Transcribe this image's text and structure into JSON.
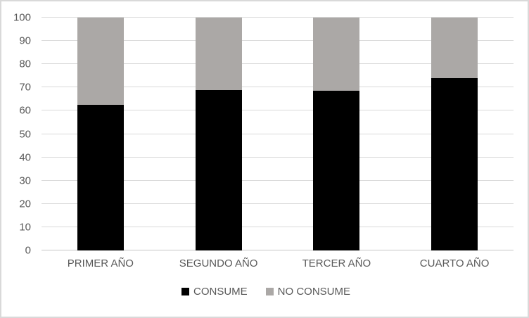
{
  "chart_data": {
    "type": "bar",
    "stacked": true,
    "title": "",
    "xlabel": "",
    "ylabel": "",
    "categories": [
      "PRIMER AÑO",
      "SEGUNDO AÑO",
      "TERCER AÑO",
      "CUARTO AÑO"
    ],
    "series": [
      {
        "name": "CONSUME",
        "color": "#000000",
        "values": [
          62.5,
          69,
          68.5,
          74
        ]
      },
      {
        "name": "NO CONSUME",
        "color": "#aba8a6",
        "values": [
          37.5,
          31,
          31.5,
          26
        ]
      }
    ],
    "ylim": [
      0,
      100
    ],
    "yticks": [
      0,
      10,
      20,
      30,
      40,
      50,
      60,
      70,
      80,
      90,
      100
    ],
    "grid": true,
    "legend_position": "bottom"
  },
  "colors": {
    "gridline": "#d9d9d9",
    "axis_line": "#c6c6c6",
    "axis_text": "#595959",
    "frame_border": "#d9d9d9",
    "background": "#ffffff"
  }
}
